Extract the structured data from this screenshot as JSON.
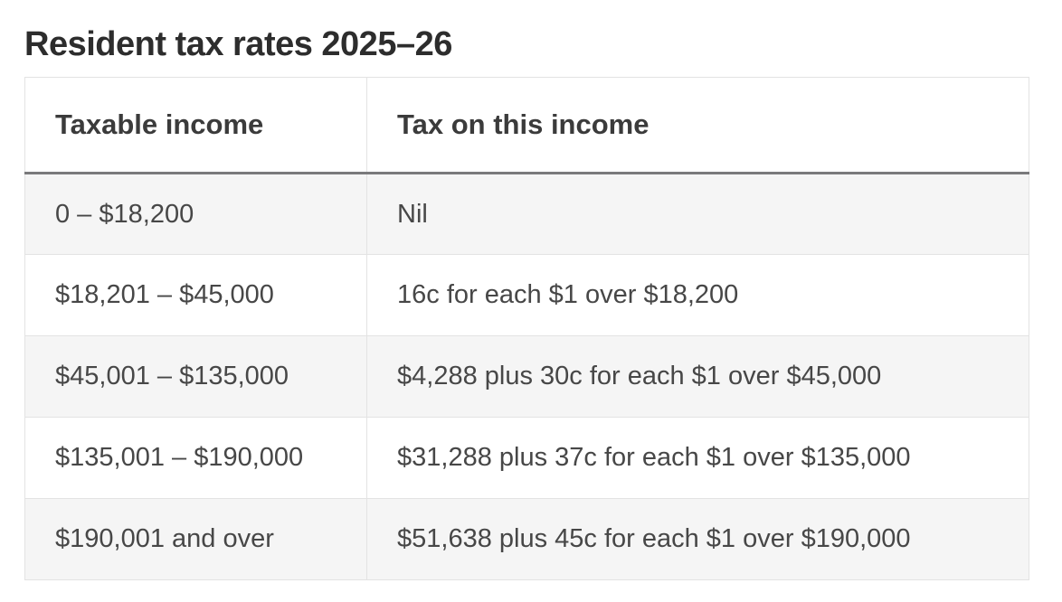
{
  "page": {
    "title": "Resident tax rates 2025–26"
  },
  "table": {
    "headers": [
      "Taxable income",
      "Tax on this income"
    ],
    "rows": [
      [
        "0 – $18,200",
        "Nil"
      ],
      [
        "$18,201 – $45,000",
        "16c for each $1 over $18,200"
      ],
      [
        "$45,001 – $135,000",
        "$4,288 plus 30c for each $1 over $45,000"
      ],
      [
        "$135,001 – $190,000",
        "$31,288 plus 37c for each $1 over $135,000"
      ],
      [
        "$190,001 and over",
        "$51,638 plus 45c for each $1 over $190,000"
      ]
    ]
  },
  "colors": {
    "title_text": "#2d2d2d",
    "header_text": "#3b3b3b",
    "body_text": "#474747",
    "stripe_row_bg": "#f5f5f5",
    "cell_border": "#e3e3e3",
    "header_rule": "#7a7a7c",
    "page_bg": "#ffffff"
  }
}
